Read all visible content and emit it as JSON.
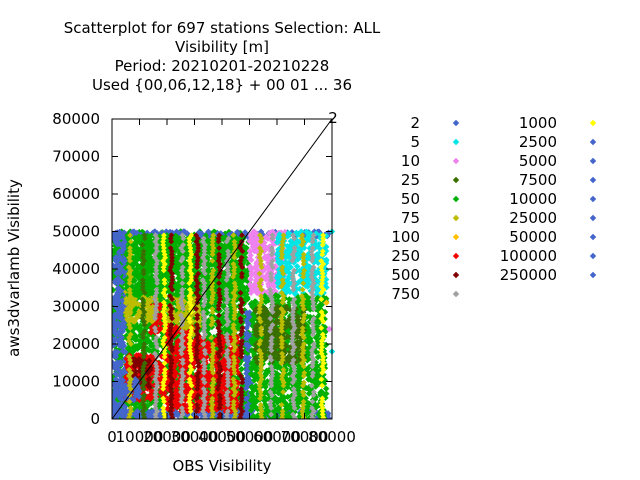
{
  "chart_data": {
    "type": "scatter",
    "title_lines": [
      "Scatterplot for  697 stations Selection: ALL",
      "Visibility [m]",
      "Period: 20210201-20210228",
      "Used {00,06,12,18} + 00 01 ... 36"
    ],
    "xlabel": "OBS Visibility",
    "ylabel": "aws3dvarlamb Visibility",
    "xlim": [
      0,
      80000
    ],
    "ylim": [
      0,
      80000
    ],
    "x_ticks": [
      "0",
      "10000",
      "20000",
      "30000",
      "40000",
      "50000",
      "60000",
      "70000",
      "80000"
    ],
    "y_ticks": [
      "0",
      "10000",
      "20000",
      "30000",
      "40000",
      "50000",
      "60000",
      "70000",
      "80000"
    ],
    "corner_label": "2",
    "diagonal": true,
    "legend_position": "right",
    "legend": [
      {
        "label": "2",
        "color": "#4466cc"
      },
      {
        "label": "5",
        "color": "#00e5e5"
      },
      {
        "label": "10",
        "color": "#ee82ee"
      },
      {
        "label": "25",
        "color": "#3a6e00"
      },
      {
        "label": "50",
        "color": "#00b000"
      },
      {
        "label": "75",
        "color": "#bcbc00"
      },
      {
        "label": "100",
        "color": "#ffc000"
      },
      {
        "label": "250",
        "color": "#ee0000"
      },
      {
        "label": "500",
        "color": "#800000"
      },
      {
        "label": "750",
        "color": "#a0a0a0"
      },
      {
        "label": "1000",
        "color": "#ffff00"
      },
      {
        "label": "2500",
        "color": "#4466cc"
      },
      {
        "label": "5000",
        "color": "#4466cc"
      },
      {
        "label": "7500",
        "color": "#4466cc"
      },
      {
        "label": "10000",
        "color": "#4466cc"
      },
      {
        "label": "25000",
        "color": "#4466cc"
      },
      {
        "label": "50000",
        "color": "#4466cc"
      },
      {
        "label": "100000",
        "color": "#4466cc"
      },
      {
        "label": "250000",
        "color": "#4466cc"
      }
    ],
    "regions": [
      {
        "x": [
          0,
          50000
        ],
        "y": [
          0,
          50000
        ],
        "color": "#00b000"
      },
      {
        "x": [
          0,
          5000
        ],
        "y": [
          0,
          50000
        ],
        "color": "#4466cc"
      },
      {
        "x": [
          0,
          80000
        ],
        "y": [
          0,
          2500
        ],
        "color": "#4466cc"
      },
      {
        "x": [
          0,
          80000
        ],
        "y": [
          48500,
          50000
        ],
        "color": "#4466cc"
      },
      {
        "x": [
          5000,
          20000
        ],
        "y": [
          5000,
          17000
        ],
        "color": "#ee0000"
      },
      {
        "x": [
          7000,
          14000
        ],
        "y": [
          8000,
          16000
        ],
        "color": "#800000"
      },
      {
        "x": [
          2000,
          10000
        ],
        "y": [
          5000,
          11000
        ],
        "color": "#4466cc"
      },
      {
        "x": [
          14000,
          18000
        ],
        "y": [
          23000,
          31000
        ],
        "color": "#ee0000"
      },
      {
        "x": [
          20000,
          32000
        ],
        "y": [
          22000,
          33000
        ],
        "color": "#bcbc00"
      },
      {
        "x": [
          20000,
          30000
        ],
        "y": [
          2000,
          25000
        ],
        "color": "#ee0000"
      },
      {
        "x": [
          30000,
          46000
        ],
        "y": [
          2000,
          22000
        ],
        "color": "#ee0000"
      },
      {
        "x": [
          5000,
          16000
        ],
        "y": [
          26000,
          34000
        ],
        "color": "#bcbc00"
      },
      {
        "x": [
          48500,
          50500
        ],
        "y": [
          0,
          32000
        ],
        "color": "#4466cc"
      },
      {
        "x": [
          50000,
          63000
        ],
        "y": [
          33000,
          50000
        ],
        "color": "#ee82ee"
      },
      {
        "x": [
          60000,
          78000
        ],
        "y": [
          33000,
          50000
        ],
        "color": "#00e5e5"
      },
      {
        "x": [
          50500,
          78000
        ],
        "y": [
          0,
          33000
        ],
        "color": "#00b000"
      },
      {
        "x": [
          52000,
          70000
        ],
        "y": [
          15000,
          30000
        ],
        "color": "#3a6e00"
      },
      {
        "x": [
          5000,
          48000
        ],
        "y": [
          33000,
          49000
        ],
        "color": "#00b000"
      }
    ],
    "stripes": [
      {
        "x": 6500,
        "y": [
          0,
          49000
        ],
        "color": "#bcbc00"
      },
      {
        "x": 11500,
        "y": [
          0,
          49000
        ],
        "color": "#3a6e00"
      },
      {
        "x": 16000,
        "y": [
          0,
          49000
        ],
        "color": "#a0a0a0"
      },
      {
        "x": 19000,
        "y": [
          0,
          49000
        ],
        "color": "#ffff00"
      },
      {
        "x": 21500,
        "y": [
          0,
          49000
        ],
        "color": "#800000"
      },
      {
        "x": 25500,
        "y": [
          0,
          49000
        ],
        "color": "#a0a0a0"
      },
      {
        "x": 28500,
        "y": [
          0,
          49000
        ],
        "color": "#ffff00"
      },
      {
        "x": 31000,
        "y": [
          0,
          49000
        ],
        "color": "#800000"
      },
      {
        "x": 33500,
        "y": [
          0,
          49000
        ],
        "color": "#a0a0a0"
      },
      {
        "x": 36500,
        "y": [
          0,
          49000
        ],
        "color": "#bcbc00"
      },
      {
        "x": 39000,
        "y": [
          0,
          49000
        ],
        "color": "#800000"
      },
      {
        "x": 42000,
        "y": [
          0,
          49000
        ],
        "color": "#a0a0a0"
      },
      {
        "x": 44500,
        "y": [
          0,
          49000
        ],
        "color": "#bcbc00"
      },
      {
        "x": 47000,
        "y": [
          0,
          49000
        ],
        "color": "#800000"
      },
      {
        "x": 54000,
        "y": [
          0,
          49000
        ],
        "color": "#bcbc00"
      },
      {
        "x": 58000,
        "y": [
          0,
          49000
        ],
        "color": "#a0a0a0"
      },
      {
        "x": 62000,
        "y": [
          0,
          49000
        ],
        "color": "#bcbc00"
      },
      {
        "x": 66000,
        "y": [
          0,
          49000
        ],
        "color": "#a0a0a0"
      },
      {
        "x": 69500,
        "y": [
          0,
          49000
        ],
        "color": "#bcbc00"
      },
      {
        "x": 73000,
        "y": [
          0,
          49000
        ],
        "color": "#a0a0a0"
      },
      {
        "x": 76500,
        "y": [
          0,
          49000
        ],
        "color": "#ffff00"
      }
    ],
    "outliers": [
      {
        "x": 80000,
        "y": 50000,
        "color": "#00e5e5"
      },
      {
        "x": 80000,
        "y": 18000,
        "color": "#00e5e5"
      },
      {
        "x": 78000,
        "y": 31000,
        "color": "#ffc000"
      },
      {
        "x": 79000,
        "y": 24000,
        "color": "#ee82ee"
      }
    ]
  }
}
